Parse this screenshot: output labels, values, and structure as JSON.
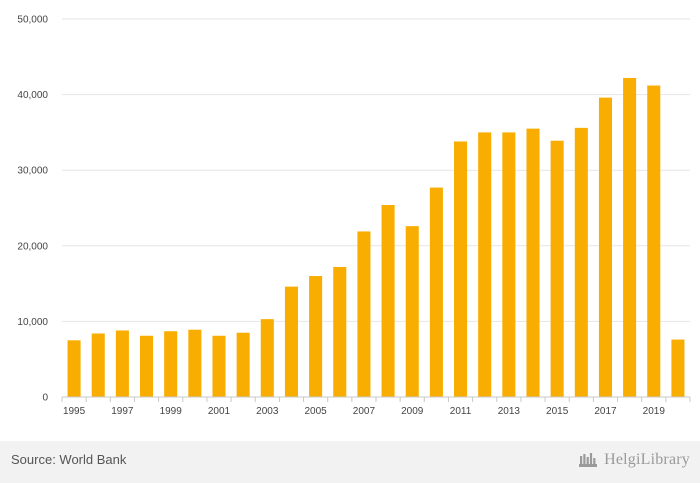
{
  "chart_data": {
    "type": "bar",
    "categories": [
      "1995",
      "1996",
      "1997",
      "1998",
      "1999",
      "2000",
      "2001",
      "2002",
      "2003",
      "2004",
      "2005",
      "2006",
      "2007",
      "2008",
      "2009",
      "2010",
      "2011",
      "2012",
      "2013",
      "2014",
      "2015",
      "2016",
      "2017",
      "2018",
      "2019",
      "2020"
    ],
    "values": [
      7500,
      8400,
      8800,
      8100,
      8700,
      8900,
      8100,
      8500,
      10300,
      14600,
      16000,
      17200,
      21900,
      25400,
      22600,
      27700,
      33800,
      35000,
      35000,
      35500,
      33900,
      35600,
      39600,
      42200,
      41200,
      7600
    ],
    "x_tick_labels": [
      "1995",
      "1997",
      "1999",
      "2001",
      "2003",
      "2005",
      "2007",
      "2009",
      "2011",
      "2013",
      "2015",
      "2017",
      "2019"
    ],
    "y_tick_labels": [
      "0",
      "10,000",
      "20,000",
      "30,000",
      "40,000",
      "50,000"
    ],
    "y_ticks": [
      0,
      10000,
      20000,
      30000,
      40000,
      50000
    ],
    "ylim": [
      0,
      50000
    ],
    "title": "",
    "xlabel": "",
    "ylabel": "",
    "grid": true,
    "bar_color": "#f9ad00",
    "grid_color": "#e6e6e6"
  },
  "footer": {
    "source": "Source: World Bank",
    "logo_text": "HelgiLibrary"
  }
}
